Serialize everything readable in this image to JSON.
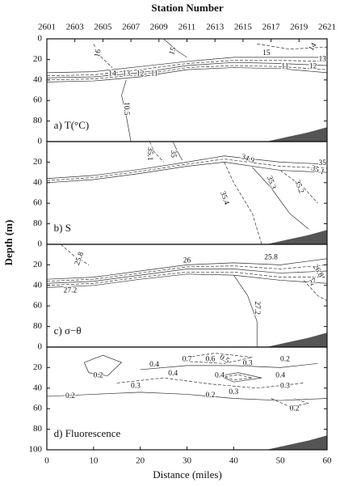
{
  "chart_data": {
    "type": "contour",
    "x2label": "Station Number",
    "xlabel": "Distance (miles)",
    "ylabel": "Depth (m)",
    "xlim": [
      0,
      60
    ],
    "xticks": [
      0,
      10,
      20,
      30,
      40,
      50,
      60
    ],
    "x2lim": [
      2601,
      2621
    ],
    "x2ticks": [
      2601,
      2603,
      2605,
      2607,
      2609,
      2611,
      2613,
      2615,
      2617,
      2619,
      2621
    ],
    "panels": [
      {
        "label": "a) T(°C)",
        "ylim": [
          0,
          100
        ],
        "yticks": [
          0,
          20,
          40,
          60,
          80
        ],
        "contour_labels": [
          16,
          15,
          14,
          15,
          13,
          12,
          11,
          14,
          13,
          12,
          11,
          10.5
        ]
      },
      {
        "label": "b) S",
        "ylim": [
          0,
          100
        ],
        "yticks": [
          0,
          20,
          40,
          60,
          80
        ],
        "contour_labels": [
          35.1,
          35.0,
          34.9,
          35.0,
          35.1,
          35.3,
          35.2,
          35.4
        ]
      },
      {
        "label": "c) σ−θ",
        "ylim": [
          0,
          100
        ],
        "yticks": [
          0,
          20,
          40,
          60,
          80
        ],
        "contour_labels": [
          25.8,
          26.0,
          25.8,
          27.2,
          26.8,
          27.0,
          27.2
        ]
      },
      {
        "label": "d) Fluorescence",
        "ylim": [
          0,
          100
        ],
        "yticks": [
          0,
          20,
          40,
          60,
          80,
          100
        ],
        "contour_labels": [
          0.2,
          0.4,
          0.7,
          0.6,
          0.5,
          0.3,
          0.2,
          0.4,
          0.3,
          0.4,
          0.4,
          0.3,
          0.3,
          0.2,
          0.2,
          0.2
        ]
      }
    ]
  }
}
